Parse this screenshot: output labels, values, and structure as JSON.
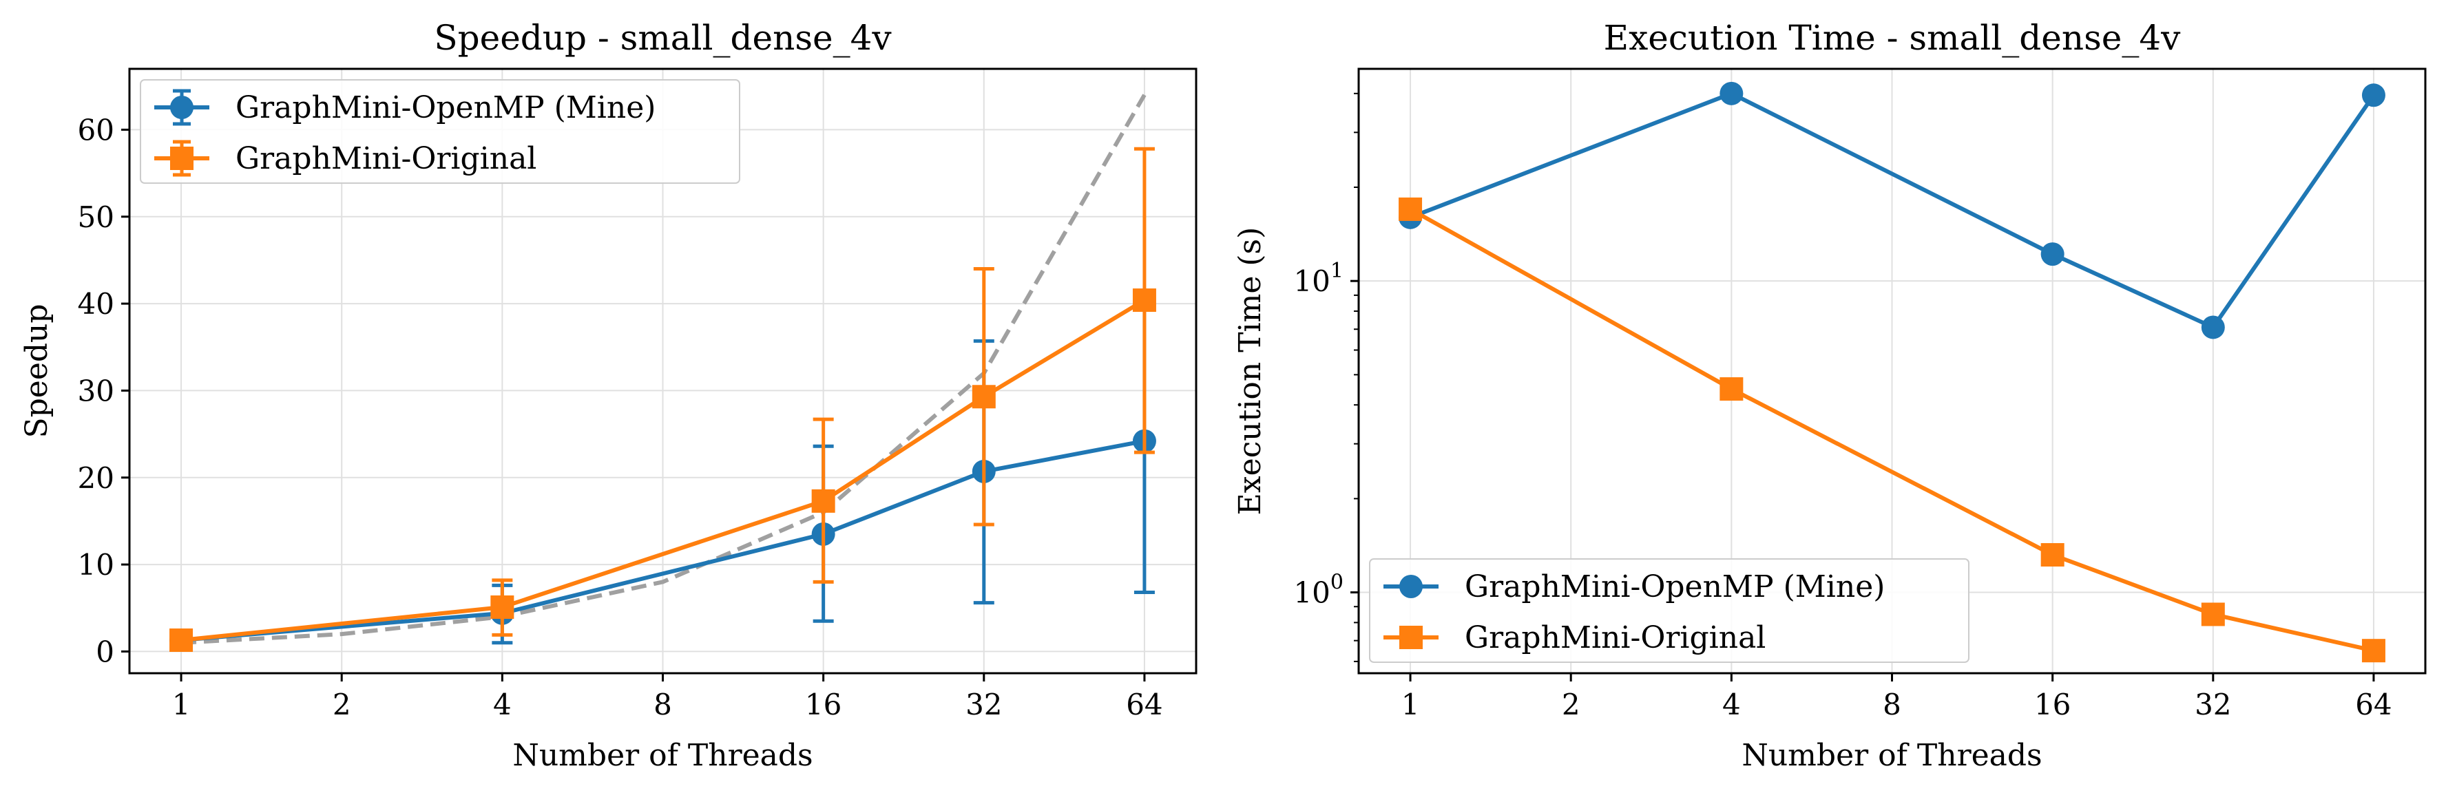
{
  "chart_data": [
    {
      "type": "line",
      "title": "Speedup - small_dense_4v",
      "xlabel": "Number of Threads",
      "ylabel": "Speedup",
      "x_scale": "log2",
      "xlim": [
        0.8,
        80
      ],
      "x_ticks": [
        1,
        2,
        4,
        8,
        16,
        32,
        64
      ],
      "x_tick_labels": [
        "1",
        "2",
        "4",
        "8",
        "16",
        "32",
        "64"
      ],
      "ylim": [
        -2.5,
        67
      ],
      "y_ticks": [
        0,
        10,
        20,
        30,
        40,
        50,
        60
      ],
      "y_tick_labels": [
        "0",
        "10",
        "20",
        "30",
        "40",
        "50",
        "60"
      ],
      "grid": true,
      "legend_position": "top-left",
      "series": [
        {
          "name": "GraphMini-OpenMP (Mine)",
          "color": "#1f77b4",
          "marker": "circle",
          "x": [
            1,
            4,
            16,
            32,
            64
          ],
          "y": [
            1.3,
            4.4,
            13.5,
            20.7,
            24.2
          ],
          "yerr_low": [
            1.3,
            1.0,
            3.5,
            5.6,
            6.8
          ],
          "yerr_high": [
            1.3,
            7.6,
            23.6,
            35.7,
            41.2
          ]
        },
        {
          "name": "GraphMini-Original",
          "color": "#ff7f0e",
          "marker": "square",
          "x": [
            1,
            4,
            16,
            32,
            64
          ],
          "y": [
            1.3,
            5.1,
            17.3,
            29.3,
            40.4
          ],
          "yerr_low": [
            1.3,
            1.9,
            8.0,
            14.6,
            22.9
          ],
          "yerr_high": [
            1.3,
            8.2,
            26.7,
            44.0,
            57.8
          ]
        }
      ],
      "reference_line": {
        "style": "dashed",
        "color": "#a0a0a0",
        "x": [
          1,
          2,
          4,
          8,
          16,
          32,
          64
        ],
        "y": [
          1,
          2,
          4,
          8,
          16,
          32,
          64
        ]
      }
    },
    {
      "type": "line",
      "title": "Execution Time - small_dense_4v",
      "xlabel": "Number of Threads",
      "ylabel": "Execution Time (s)",
      "x_scale": "log2",
      "xlim": [
        0.8,
        80
      ],
      "x_ticks": [
        1,
        2,
        4,
        8,
        16,
        32,
        64
      ],
      "x_tick_labels": [
        "1",
        "2",
        "4",
        "8",
        "16",
        "32",
        "64"
      ],
      "y_scale": "log10",
      "ylim": [
        0.55,
        48
      ],
      "y_ticks": [
        1,
        10
      ],
      "y_tick_labels": [
        {
          "base": "10",
          "exp": "0"
        },
        {
          "base": "10",
          "exp": "1"
        }
      ],
      "grid": true,
      "legend_position": "bottom-left",
      "series": [
        {
          "name": "GraphMini-OpenMP (Mine)",
          "color": "#1f77b4",
          "marker": "circle",
          "x": [
            1,
            4,
            16,
            32,
            64
          ],
          "y": [
            16,
            40,
            12.2,
            7.1,
            39.5
          ]
        },
        {
          "name": "GraphMini-Original",
          "color": "#ff7f0e",
          "marker": "square",
          "x": [
            1,
            4,
            16,
            32,
            64
          ],
          "y": [
            17,
            4.5,
            1.32,
            0.85,
            0.65
          ]
        }
      ]
    }
  ]
}
